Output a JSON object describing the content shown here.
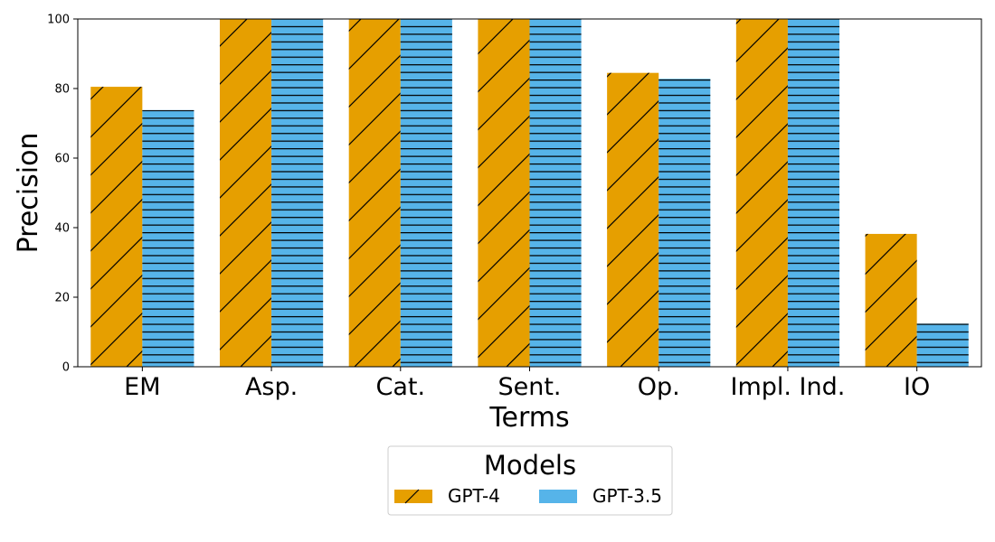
{
  "chart_data": {
    "type": "bar",
    "title": "",
    "xlabel": "Terms",
    "ylabel": "Precision",
    "categories": [
      "EM",
      "Asp.",
      "Cat.",
      "Sent.",
      "Op.",
      "Impl. Ind.",
      "IO"
    ],
    "series": [
      {
        "name": "GPT-4",
        "values": [
          80.5,
          100,
          100,
          100,
          84.5,
          100,
          38.2
        ],
        "color": "#E69F00",
        "pattern": "diagonal-hatch"
      },
      {
        "name": "GPT-3.5",
        "values": [
          73.8,
          100,
          100,
          100,
          82.8,
          100,
          12.4
        ],
        "color": "#56B4E9",
        "pattern": "horizontal-hatch"
      }
    ],
    "ylim": [
      0,
      100
    ],
    "yticks": [
      0,
      20,
      40,
      60,
      80,
      100
    ],
    "grid": false,
    "legend": {
      "title": "Models",
      "placement": "bottom-center"
    }
  }
}
